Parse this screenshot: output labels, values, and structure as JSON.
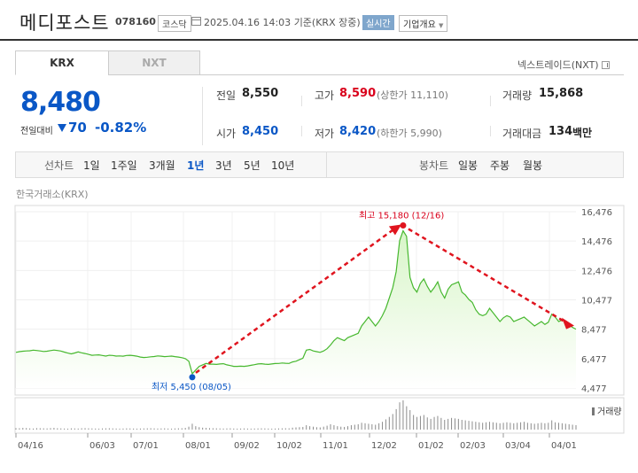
{
  "header": {
    "name": "메디포스트",
    "code": "078160",
    "market": "코스닥",
    "datetime": "2025.04.16 14:03",
    "basis": "기준(KRX 장중)",
    "realtime": "실시간",
    "overview": "기업개요"
  },
  "tabs": [
    "KRX",
    "NXT"
  ],
  "nxt_link": "넥스트레이드(NXT)",
  "quote": {
    "price": "8,480",
    "change_label": "전일대비",
    "change": "70",
    "change_pct": "-0.82%",
    "prev_close_label": "전일",
    "prev_close": "8,550",
    "high_label": "고가",
    "high": "8,590",
    "upper_limit": "(상한가 11,110)",
    "volume_label": "거래량",
    "volume": "15,868",
    "open_label": "시가",
    "open": "8,450",
    "low_label": "저가",
    "low": "8,420",
    "lower_limit": "(하한가 5,990)",
    "amount_label": "거래대금",
    "amount": "134",
    "amount_unit": "백만"
  },
  "toolbar": {
    "line_label": "선차트",
    "periods": [
      "1일",
      "1주일",
      "3개월",
      "1년",
      "3년",
      "5년",
      "10년"
    ],
    "selected_period": "1년",
    "candle_label": "봉차트",
    "candles": [
      "일봉",
      "주봉",
      "월봉"
    ]
  },
  "colors": {
    "up": "#d9001b",
    "down": "#0a57c6",
    "line": "#47b82f",
    "fill": "#d8f5c8",
    "annotation": "#e0141e"
  },
  "chart_data": {
    "type": "area",
    "source": "한국거래소(KRX)",
    "x_ticks": [
      "04/16",
      "06/03",
      "07/01",
      "08/01",
      "09/02",
      "10/02",
      "11/01",
      "12/02",
      "01/02",
      "02/03",
      "03/04",
      "04/01"
    ],
    "y_ticks": [
      "16,476",
      "14,476",
      "12,476",
      "10,477",
      "8,477",
      "6,477",
      "4,477"
    ],
    "ylim": [
      4477,
      16476
    ],
    "high_annotation": "최고 15,180 (12/16)",
    "low_annotation": "최저 5,450 (08/05)",
    "volume_label": "거래량",
    "series": [
      {
        "values": [
          6900,
          6950,
          6980,
          7000,
          7010,
          7050,
          7030,
          7000,
          6960,
          6980,
          7020,
          7060,
          7030,
          6990,
          6920,
          6850,
          6800,
          6860,
          6930,
          6870,
          6820,
          6760,
          6700,
          6720,
          6730,
          6690,
          6650,
          6700,
          6690,
          6650,
          6660,
          6640,
          6690,
          6700,
          6680,
          6640,
          6580,
          6550,
          6570,
          6600,
          6620,
          6660,
          6640,
          6610,
          6630,
          6650,
          6610,
          6580,
          6540,
          6470,
          6300,
          5450,
          5700,
          5950,
          6050,
          6150,
          6100,
          6100,
          6080,
          6110,
          6130,
          6050,
          6000,
          5950,
          5950,
          5960,
          5950,
          5980,
          6020,
          6060,
          6110,
          6130,
          6100,
          6080,
          6110,
          6140,
          6150,
          6180,
          6160,
          6150,
          6250,
          6300,
          6400,
          6500,
          7050,
          7100,
          7000,
          6950,
          6900,
          7000,
          7150,
          7400,
          7700,
          7900,
          7800,
          7700,
          7900,
          8000,
          8100,
          8200,
          8700,
          9000,
          9300,
          9000,
          8700,
          9000,
          9400,
          9900,
          10600,
          11300,
          12400,
          14500,
          15180,
          14800,
          12000,
          11300,
          11000,
          11600,
          11900,
          11400,
          11000,
          11300,
          11700,
          11000,
          10600,
          11200,
          11500,
          11600,
          11700,
          11000,
          10800,
          10500,
          10300,
          9800,
          9500,
          9400,
          9500,
          9900,
          9600,
          9300,
          9000,
          9250,
          9400,
          9300,
          9000,
          9100,
          9200,
          9300,
          9100,
          8900,
          8700,
          8850,
          9000,
          8800,
          8950,
          9500,
          9300,
          9000,
          9100,
          9000,
          8800,
          8600,
          8480
        ]
      }
    ],
    "volume": [
      30,
      28,
      35,
      32,
      25,
      22,
      30,
      28,
      26,
      24,
      30,
      35,
      28,
      25,
      22,
      20,
      26,
      24,
      22,
      28,
      30,
      26,
      24,
      22,
      20,
      24,
      26,
      28,
      24,
      22,
      20,
      22,
      25,
      24,
      22,
      20,
      22,
      24,
      26,
      28,
      25,
      22,
      24,
      26,
      22,
      20,
      24,
      26,
      28,
      35,
      60,
      120,
      70,
      50,
      40,
      35,
      30,
      28,
      26,
      24,
      22,
      24,
      26,
      22,
      20,
      22,
      24,
      22,
      20,
      22,
      24,
      26,
      24,
      22,
      20,
      22,
      24,
      26,
      28,
      26,
      40,
      45,
      50,
      55,
      90,
      70,
      60,
      50,
      45,
      60,
      80,
      110,
      90,
      70,
      60,
      55,
      70,
      90,
      100,
      110,
      140,
      130,
      120,
      110,
      100,
      130,
      160,
      210,
      260,
      320,
      420,
      560,
      600,
      480,
      400,
      300,
      260,
      280,
      300,
      250,
      220,
      260,
      280,
      240,
      200,
      220,
      240,
      230,
      220,
      200,
      190,
      180,
      170,
      160,
      150,
      140,
      150,
      160,
      150,
      140,
      130,
      140,
      150,
      140,
      130,
      140,
      150,
      160,
      140,
      130,
      120,
      130,
      140,
      130,
      140,
      190,
      150,
      140,
      130,
      120,
      110,
      100,
      90
    ]
  }
}
